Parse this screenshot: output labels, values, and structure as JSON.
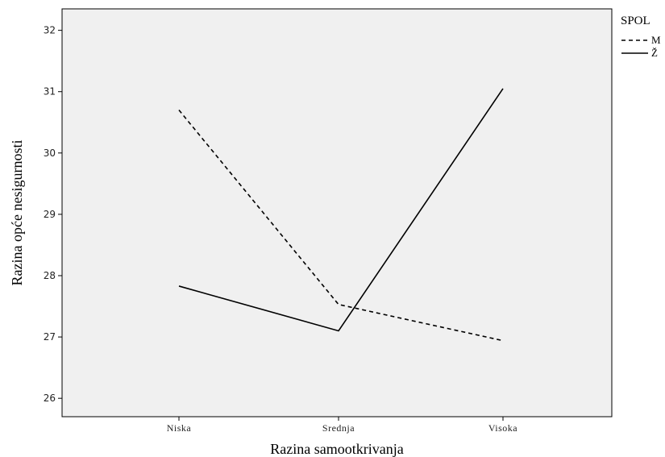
{
  "chart_data": {
    "type": "line",
    "categories": [
      "Niska",
      "Srednja",
      "Visoka"
    ],
    "series": [
      {
        "name": "M",
        "values": [
          30.7,
          27.53,
          26.94
        ],
        "line_style": "dashed",
        "color": "#000000"
      },
      {
        "name": "Ž",
        "values": [
          27.83,
          27.1,
          31.05
        ],
        "line_style": "solid",
        "color": "#000000"
      }
    ],
    "yticks": [
      26,
      27,
      28,
      29,
      30,
      31,
      32
    ],
    "ylim": [
      25.7,
      32.35
    ],
    "xlabel": "Razina samootkrivanja",
    "ylabel": "Razina opće nesigurnosti",
    "legend": {
      "title": "SPOL",
      "position": "right"
    },
    "grid": false,
    "plot_background": "#f0f0f0"
  }
}
